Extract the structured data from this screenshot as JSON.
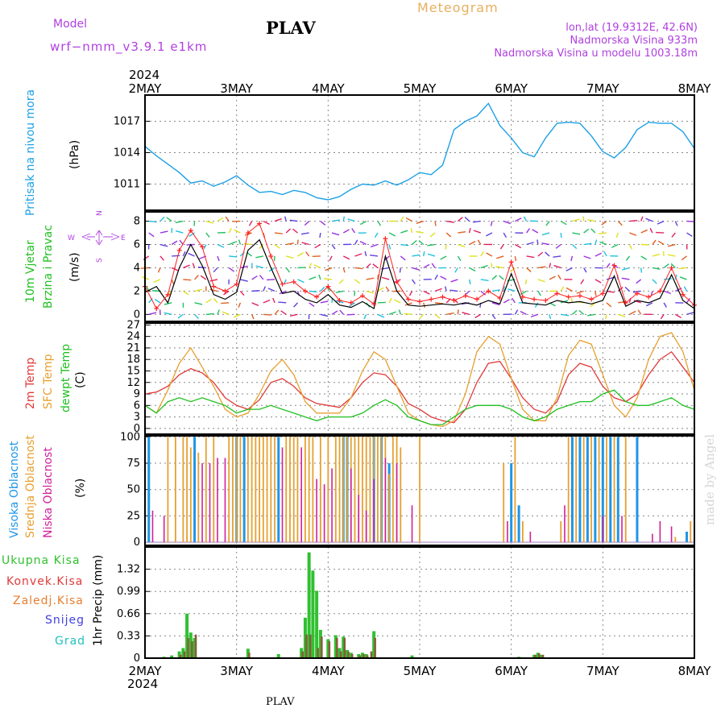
{
  "header": {
    "model_label": "Model",
    "model_name": "wrf−nmm_v3.9.1  e1km",
    "station": "PLAV",
    "product": "Meteogram",
    "coords": "lon,lat (19.9312E, 42.6N)",
    "elev": "Nadmorska Visina 933m",
    "elev_model": "Nadmorska Visina u modelu 1003.18m",
    "year": "2024",
    "footer_station": "PLAV",
    "watermark": "made by Angel"
  },
  "days": [
    "2MAY",
    "3MAY",
    "4MAY",
    "5MAY",
    "6MAY",
    "7MAY",
    "8MAY"
  ],
  "colors": {
    "pressure": "#1ea0e6",
    "wind_speed": "#000000",
    "wind_gust": "#ff2020",
    "temp2m": "#e03a3a",
    "sfc_temp": "#e6a030",
    "dewpt": "#20c020",
    "cloud_high": "#1e96e6",
    "cloud_mid": "#e6a030",
    "cloud_low": "#d0209a",
    "precip_total": "#30c030",
    "precip_conv": "#e03a3a",
    "precip_frz": "#e67e30",
    "snow": "#4040e0",
    "graupel": "#20c0c0",
    "ylabel_pressure": "#1ea0e6",
    "ylabel_wind": "#20c020",
    "compass": "#b040e0"
  },
  "panels": {
    "pressure": {
      "ylabel": "Pritisak na nivou mora",
      "unit": "(hPa)"
    },
    "wind": {
      "ylabel1": "10m Vjetar",
      "ylabel2": "Brzina i Pravac",
      "unit": "(m/s)",
      "compass_n": "N",
      "compass_s": "S",
      "compass_w": "W",
      "compass_e": "E"
    },
    "temp": {
      "ylabel1": "2m Temp",
      "ylabel2": "SFC Temp",
      "ylabel3": "dewpt Temp",
      "unit": "(C)"
    },
    "cloud": {
      "ylabel1": "Visoka Oblacnost",
      "ylabel2": "Srednja Oblacnost",
      "ylabel3": "Niska Oblacnost",
      "unit": "(%)"
    },
    "precip": {
      "legend": [
        "Ukupna Kisa",
        "Konvek.Kisa",
        "Zaledj.Kisa",
        "Snijeg",
        "Grad"
      ],
      "ylabel": "1hr Precip (mm)"
    }
  },
  "chart_data": [
    {
      "type": "line",
      "id": "pressure",
      "ylabel": "Pritisak na nivou mora (hPa)",
      "x_unit": "hours since 2MAY 00",
      "ylim": [
        1008.5,
        1019.5
      ],
      "yticks": [
        1011,
        1014,
        1017
      ],
      "x": [
        0,
        3,
        6,
        9,
        12,
        15,
        18,
        21,
        24,
        27,
        30,
        33,
        36,
        39,
        42,
        45,
        48,
        51,
        54,
        57,
        60,
        63,
        66,
        69,
        72,
        75,
        78,
        81,
        84,
        87,
        90,
        93,
        96,
        99,
        102,
        105,
        108,
        111,
        114,
        117,
        120,
        123,
        126,
        129,
        132,
        135,
        138,
        141,
        144
      ],
      "values": [
        1014.6,
        1013.7,
        1012.9,
        1012.1,
        1011.1,
        1011.3,
        1010.8,
        1011.2,
        1011.8,
        1010.9,
        1010.2,
        1010.3,
        1010.0,
        1010.4,
        1010.2,
        1009.7,
        1009.5,
        1009.8,
        1010.5,
        1011.0,
        1010.9,
        1011.3,
        1010.9,
        1011.4,
        1012.1,
        1011.9,
        1012.8,
        1016.2,
        1017.0,
        1017.5,
        1018.7,
        1016.6,
        1015.4,
        1014.0,
        1013.6,
        1015.4,
        1016.8,
        1016.9,
        1016.8,
        1015.6,
        1014.1,
        1013.5,
        1014.5,
        1016.2,
        1016.9,
        1016.8,
        1016.8,
        1016.0,
        1014.4
      ]
    },
    {
      "type": "line",
      "id": "wind",
      "ylabel": "10m Vjetar Brzina i Pravac (m/s)",
      "x_unit": "hours since 2MAY 00",
      "ylim": [
        -0.6,
        8.8
      ],
      "yticks": [
        0,
        2,
        4,
        6,
        8
      ],
      "series": [
        {
          "name": "speed",
          "x": [
            0,
            3,
            6,
            9,
            12,
            15,
            18,
            21,
            24,
            27,
            30,
            33,
            36,
            39,
            42,
            45,
            48,
            51,
            54,
            57,
            60,
            63,
            66,
            69,
            72,
            75,
            78,
            81,
            84,
            87,
            90,
            93,
            96,
            99,
            102,
            105,
            108,
            111,
            114,
            117,
            120,
            123,
            126,
            129,
            132,
            135,
            138,
            141,
            144
          ],
          "values": [
            1.9,
            2.4,
            1.0,
            4.0,
            6.0,
            4.2,
            1.7,
            1.3,
            1.9,
            5.5,
            6.4,
            4.0,
            1.8,
            2.0,
            1.3,
            1.0,
            1.7,
            0.8,
            0.6,
            1.1,
            0.5,
            5.0,
            2.0,
            0.8,
            0.7,
            0.8,
            0.9,
            0.8,
            1.0,
            0.8,
            1.2,
            0.9,
            3.5,
            1.0,
            0.9,
            0.8,
            1.2,
            1.0,
            1.1,
            0.9,
            1.2,
            3.3,
            0.7,
            1.2,
            1.0,
            1.4,
            3.4,
            1.2,
            0.5
          ]
        },
        {
          "name": "gust",
          "x": [
            0,
            3,
            6,
            9,
            12,
            15,
            18,
            21,
            24,
            27,
            30,
            33,
            36,
            39,
            42,
            45,
            48,
            51,
            54,
            57,
            60,
            63,
            66,
            69,
            72,
            75,
            78,
            81,
            84,
            87,
            90,
            93,
            96,
            99,
            102,
            105,
            108,
            111,
            114,
            117,
            120,
            123,
            126,
            129,
            132,
            135,
            138,
            141,
            144
          ],
          "values": [
            2.4,
            0.5,
            1.7,
            5.5,
            7.2,
            5.8,
            2.4,
            2.0,
            2.6,
            7.0,
            7.8,
            5.0,
            2.6,
            2.8,
            2.0,
            1.5,
            2.4,
            1.2,
            1.0,
            1.6,
            0.9,
            6.5,
            2.8,
            1.3,
            1.1,
            1.3,
            1.5,
            1.2,
            1.6,
            1.3,
            2.0,
            1.4,
            4.5,
            1.5,
            1.3,
            1.2,
            1.8,
            1.5,
            1.6,
            1.3,
            1.8,
            4.2,
            1.0,
            1.8,
            1.5,
            2.0,
            4.0,
            1.7,
            0.8
          ]
        }
      ]
    },
    {
      "type": "line",
      "id": "temperature",
      "ylabel": "2m Temp / SFC Temp / dewpt Temp (C)",
      "x_unit": "hours since 2MAY 00",
      "ylim": [
        -1.5,
        27.5
      ],
      "yticks": [
        0,
        3,
        6,
        9,
        12,
        15,
        18,
        21,
        24,
        27
      ],
      "x": [
        0,
        3,
        6,
        9,
        12,
        15,
        18,
        21,
        24,
        27,
        30,
        33,
        36,
        39,
        42,
        45,
        48,
        51,
        54,
        57,
        60,
        63,
        66,
        69,
        72,
        75,
        78,
        81,
        84,
        87,
        90,
        93,
        96,
        99,
        102,
        105,
        108,
        111,
        114,
        117,
        120,
        123,
        126,
        129,
        132,
        135,
        138,
        141,
        144
      ],
      "series": [
        {
          "name": "2m Temp",
          "values": [
            9,
            9.5,
            11,
            14,
            15.6,
            14.5,
            12,
            8,
            6,
            5,
            7.5,
            12,
            13,
            11,
            8,
            6.5,
            6,
            5.5,
            8,
            12,
            14.5,
            14,
            11,
            6.5,
            5,
            3,
            2,
            1.5,
            5,
            12,
            17,
            17.5,
            13,
            8,
            5,
            4,
            7,
            14,
            17,
            16,
            11,
            8,
            7,
            9,
            14,
            18,
            20,
            16,
            12
          ]
        },
        {
          "name": "SFC Temp",
          "values": [
            6,
            4,
            10,
            17,
            21,
            16,
            11,
            5,
            3,
            4,
            9,
            15,
            18,
            14,
            7,
            4,
            4,
            4,
            8,
            15,
            20,
            18,
            11,
            4,
            2,
            1,
            0.5,
            2,
            9,
            20,
            24,
            22,
            13,
            5,
            2,
            2,
            8,
            19,
            23,
            22,
            14,
            6,
            3,
            8,
            18,
            24,
            25,
            20,
            10
          ]
        },
        {
          "name": "dewpt Temp",
          "values": [
            6,
            4,
            7,
            8,
            7,
            8,
            7,
            6,
            4,
            5,
            5,
            6,
            5,
            4,
            3,
            2,
            3,
            3,
            3,
            4,
            6,
            7.5,
            6,
            3,
            2,
            1,
            1,
            3,
            5,
            6,
            6,
            6,
            5,
            3,
            2,
            3,
            5,
            6,
            7,
            7,
            9,
            10,
            7,
            6,
            6,
            7,
            8,
            6,
            5
          ]
        }
      ]
    },
    {
      "type": "bar",
      "id": "cloud",
      "ylabel": "Visoka / Srednja / Niska Oblacnost (%)",
      "x_unit": "hours since 2MAY 00",
      "ylim": [
        -3,
        101
      ],
      "yticks": [
        0,
        25,
        50,
        75,
        100
      ],
      "series": [
        {
          "name": "Visoka Oblacnost",
          "x": [
            1,
            13,
            24,
            26,
            35,
            52,
            53,
            60,
            62,
            64,
            96,
            98,
            112,
            114,
            116,
            118,
            120,
            122,
            124,
            129,
            142
          ],
          "values": [
            100,
            100,
            100,
            100,
            100,
            100,
            100,
            100,
            100,
            75,
            75,
            35,
            100,
            100,
            100,
            100,
            100,
            100,
            100,
            100,
            10
          ]
        },
        {
          "name": "Srednja Oblacnost",
          "x": [
            0,
            6,
            8,
            10,
            11,
            12,
            14,
            16,
            18,
            22,
            23,
            24,
            25,
            27,
            28,
            29,
            30,
            31,
            32,
            33,
            34,
            37,
            38,
            39,
            40,
            42,
            43,
            44,
            46,
            48,
            50,
            51,
            52,
            53,
            54,
            55,
            56,
            57,
            58,
            59,
            60,
            61,
            62,
            63,
            64,
            65,
            66,
            67,
            72,
            94,
            97,
            99,
            109,
            111,
            113,
            115,
            117,
            119,
            121,
            123,
            126,
            139,
            143
          ],
          "values": [
            100,
            100,
            100,
            100,
            100,
            90,
            85,
            100,
            100,
            100,
            100,
            100,
            100,
            100,
            100,
            100,
            100,
            100,
            100,
            100,
            100,
            100,
            100,
            100,
            100,
            100,
            100,
            100,
            100,
            100,
            100,
            100,
            100,
            100,
            100,
            100,
            100,
            100,
            100,
            100,
            100,
            100,
            100,
            100,
            65,
            100,
            100,
            90,
            100,
            75,
            100,
            20,
            20,
            100,
            100,
            100,
            100,
            100,
            100,
            100,
            100,
            5,
            20
          ]
        },
        {
          "name": "Niska Oblacnost",
          "x": [
            2,
            5,
            15,
            17,
            19,
            21,
            36,
            41,
            45,
            47,
            49,
            54,
            56,
            58,
            60,
            63,
            66,
            70,
            95,
            101,
            110,
            120,
            125,
            133,
            135,
            138
          ],
          "values": [
            30,
            25,
            75,
            75,
            80,
            80,
            90,
            90,
            60,
            55,
            70,
            70,
            45,
            30,
            60,
            80,
            75,
            35,
            20,
            10,
            35,
            25,
            25,
            8,
            20,
            15
          ]
        }
      ]
    },
    {
      "type": "bar",
      "id": "precip",
      "ylabel": "1hr Precip (mm)",
      "x_unit": "hours since 2MAY 00",
      "ylim": [
        0,
        1.65
      ],
      "yticks": [
        0,
        0.33,
        0.66,
        0.99,
        1.32
      ],
      "series": [
        {
          "name": "Ukupna Kisa",
          "x": [
            5,
            7,
            9,
            10,
            11,
            12,
            13,
            27,
            35,
            41,
            42,
            43,
            44,
            45,
            46,
            48,
            50,
            51,
            52,
            53,
            54,
            56,
            57,
            58,
            60,
            70,
            98,
            102,
            103,
            104
          ],
          "values": [
            0.02,
            0.04,
            0.1,
            0.15,
            0.66,
            0.38,
            0.3,
            0.14,
            0.06,
            0.15,
            0.6,
            1.57,
            1.3,
            1.0,
            0.42,
            0.28,
            0.34,
            0.15,
            0.32,
            0.12,
            0.08,
            0.06,
            0.08,
            0.06,
            0.4,
            0.04,
            0.02,
            0.05,
            0.08,
            0.05
          ]
        },
        {
          "name": "Konvek.Kisa",
          "x": [
            9,
            10,
            11,
            12,
            13,
            27,
            41,
            42,
            43,
            45,
            46,
            48,
            50,
            51,
            52,
            53,
            54,
            56,
            57,
            58,
            59,
            60,
            102,
            103,
            104
          ],
          "values": [
            0.05,
            0.1,
            0.3,
            0.25,
            0.35,
            0.08,
            0.1,
            0.35,
            0.35,
            0.15,
            0.32,
            0.25,
            0.3,
            0.1,
            0.3,
            0.1,
            0.06,
            0.04,
            0.06,
            0.04,
            0.1,
            0.3,
            0.05,
            0.07,
            0.05
          ]
        }
      ]
    }
  ]
}
